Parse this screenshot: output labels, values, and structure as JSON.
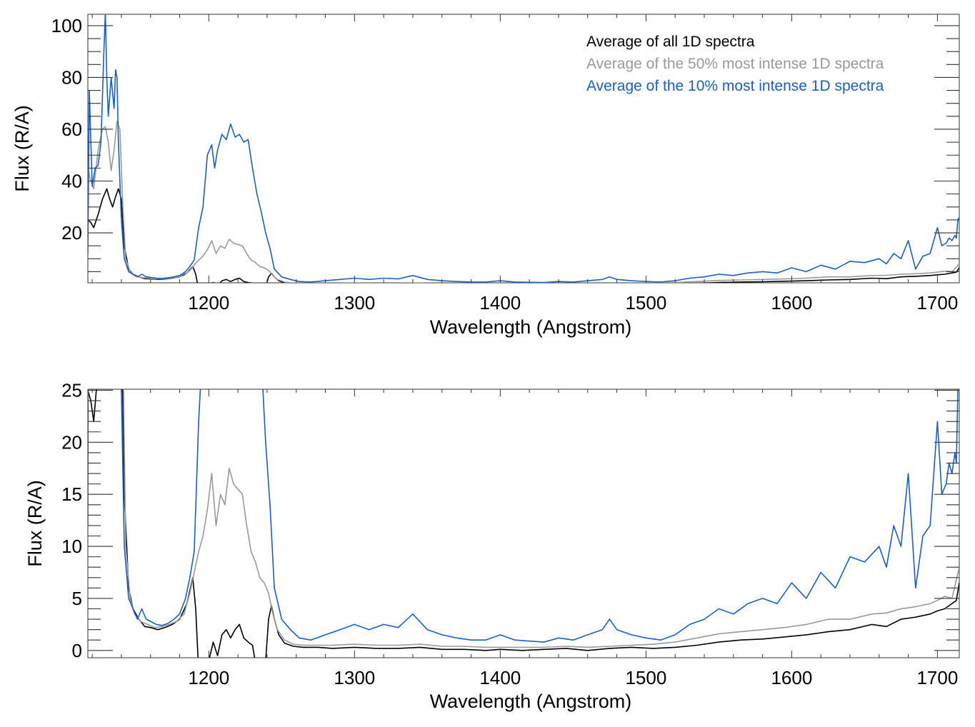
{
  "chart_data": [
    {
      "type": "line",
      "title": "",
      "xlabel": "Wavelength (Angstrom)",
      "ylabel": "Flux (R/A)",
      "xlim": [
        1117,
        1715
      ],
      "ylim": [
        0.7,
        104.4
      ],
      "xticks": [
        1200,
        1300,
        1400,
        1500,
        1600,
        1700
      ],
      "xtick_labels": [
        "1200",
        "1300",
        "1400",
        "1500",
        "1600",
        "1700"
      ],
      "yticks": [
        20,
        40,
        60,
        80,
        100
      ],
      "ytick_labels": [
        "20",
        "40",
        "60",
        "80",
        "100"
      ],
      "legend_placement": "top-right",
      "grid": false
    },
    {
      "type": "line",
      "title": "",
      "xlabel": "Wavelength (Angstrom)",
      "ylabel": "Flux (R/A)",
      "xlim": [
        1117,
        1715
      ],
      "ylim": [
        -0.7,
        25.1
      ],
      "xticks": [
        1200,
        1300,
        1400,
        1500,
        1600,
        1700
      ],
      "xtick_labels": [
        "1200",
        "1300",
        "1400",
        "1500",
        "1600",
        "1700"
      ],
      "yticks": [
        0,
        5,
        10,
        15,
        20,
        25
      ],
      "ytick_labels": [
        "0",
        "5",
        "10",
        "15",
        "20",
        "25"
      ],
      "legend_placement": "none",
      "grid": false
    }
  ],
  "series": [
    {
      "name": "Average of all 1D spectra",
      "color": "#000000",
      "x": [
        1117,
        1119,
        1121,
        1124,
        1127,
        1130,
        1132,
        1134,
        1136,
        1138,
        1140,
        1142,
        1145,
        1148,
        1152,
        1156,
        1160,
        1165,
        1170,
        1175,
        1180,
        1185,
        1189,
        1191,
        1193,
        1195,
        1197,
        1200,
        1203,
        1206,
        1209,
        1212,
        1215,
        1218,
        1221,
        1224,
        1227,
        1230,
        1233,
        1236,
        1239,
        1241,
        1243,
        1245,
        1248,
        1252,
        1258,
        1265,
        1275,
        1285,
        1300,
        1315,
        1330,
        1345,
        1360,
        1375,
        1390,
        1400,
        1415,
        1430,
        1445,
        1460,
        1475,
        1490,
        1505,
        1520,
        1535,
        1550,
        1565,
        1580,
        1595,
        1610,
        1625,
        1640,
        1655,
        1665,
        1675,
        1685,
        1695,
        1700,
        1705,
        1710,
        1713,
        1715
      ],
      "y": [
        25,
        24,
        22,
        27,
        33,
        37,
        33,
        30,
        34,
        37,
        33,
        15,
        6,
        4,
        3,
        2.3,
        2.2,
        2.0,
        2.2,
        2.5,
        3.0,
        4.5,
        7.0,
        4.0,
        -2,
        -5,
        -3,
        -1,
        0.8,
        -0.5,
        1.5,
        2.0,
        1.2,
        2.0,
        2.5,
        1.2,
        0.8,
        0.5,
        -2,
        -4,
        -1,
        3,
        4.3,
        3.0,
        1.5,
        0.7,
        0.4,
        0.3,
        0.3,
        0.2,
        0.3,
        0.2,
        0.2,
        0.3,
        0.1,
        0.1,
        0.0,
        0.1,
        0.0,
        0.1,
        0.2,
        0.0,
        0.2,
        0.3,
        0.2,
        0.3,
        0.5,
        0.8,
        1.0,
        1.1,
        1.3,
        1.5,
        1.8,
        2.0,
        2.5,
        2.3,
        3.0,
        3.2,
        3.5,
        3.8,
        4.0,
        4.5,
        4.8,
        6.5
      ]
    },
    {
      "name": "Average of the 50% most intense 1D spectra",
      "color": "#999999",
      "x": [
        1117,
        1119,
        1121,
        1124,
        1127,
        1129,
        1131,
        1133,
        1135,
        1137,
        1139,
        1141,
        1143,
        1146,
        1149,
        1153,
        1158,
        1163,
        1168,
        1173,
        1178,
        1183,
        1187,
        1190,
        1193,
        1196,
        1199,
        1202,
        1205,
        1208,
        1211,
        1214,
        1217,
        1220,
        1223,
        1226,
        1229,
        1232,
        1235,
        1238,
        1241,
        1244,
        1247,
        1252,
        1258,
        1265,
        1275,
        1285,
        1300,
        1315,
        1330,
        1345,
        1360,
        1375,
        1390,
        1400,
        1415,
        1430,
        1445,
        1460,
        1475,
        1490,
        1505,
        1520,
        1535,
        1550,
        1565,
        1580,
        1595,
        1610,
        1625,
        1640,
        1655,
        1665,
        1675,
        1685,
        1695,
        1700,
        1705,
        1710,
        1713,
        1715
      ],
      "y": [
        45,
        40,
        37,
        52,
        60,
        61,
        55,
        44,
        52,
        63,
        60,
        30,
        10,
        5,
        3.5,
        2.8,
        2.5,
        2.2,
        2.3,
        2.5,
        2.8,
        3.5,
        5.5,
        7.5,
        9.5,
        11.0,
        13.5,
        17.0,
        12.0,
        15.0,
        14.0,
        17.5,
        16.0,
        15.5,
        15.0,
        12.0,
        9.5,
        8.5,
        7.0,
        6.5,
        5.5,
        3.5,
        2.0,
        1.0,
        0.6,
        0.5,
        0.5,
        0.5,
        0.6,
        0.5,
        0.5,
        0.6,
        0.4,
        0.4,
        0.3,
        0.3,
        0.3,
        0.3,
        0.4,
        0.3,
        0.4,
        0.5,
        0.6,
        0.8,
        1.2,
        1.6,
        1.8,
        2.0,
        2.2,
        2.5,
        3.0,
        3.0,
        3.5,
        3.6,
        4.0,
        4.2,
        4.5,
        4.8,
        5.2,
        5.0,
        6.8,
        8.0
      ]
    },
    {
      "name": "Average of the 10% most intense 1D spectra",
      "color": "#1a5fc4",
      "x": [
        1117,
        1118,
        1120,
        1122,
        1124,
        1126,
        1128,
        1129,
        1130,
        1131,
        1133,
        1135,
        1136,
        1137,
        1138,
        1140,
        1142,
        1145,
        1148,
        1151,
        1154,
        1157,
        1160,
        1164,
        1168,
        1172,
        1176,
        1180,
        1184,
        1187,
        1190,
        1193,
        1196,
        1199,
        1202,
        1204,
        1206,
        1209,
        1212,
        1215,
        1218,
        1221,
        1224,
        1227,
        1230,
        1233,
        1236,
        1239,
        1242,
        1245,
        1250,
        1256,
        1262,
        1270,
        1280,
        1290,
        1300,
        1310,
        1320,
        1330,
        1340,
        1350,
        1360,
        1370,
        1380,
        1390,
        1400,
        1410,
        1420,
        1430,
        1440,
        1450,
        1460,
        1470,
        1475,
        1480,
        1490,
        1500,
        1510,
        1520,
        1530,
        1540,
        1550,
        1560,
        1570,
        1580,
        1590,
        1600,
        1610,
        1620,
        1630,
        1640,
        1650,
        1660,
        1665,
        1670,
        1675,
        1680,
        1685,
        1690,
        1695,
        1700,
        1703,
        1706,
        1708,
        1710,
        1712,
        1713,
        1714,
        1715
      ],
      "y": [
        12,
        75,
        38,
        45,
        46,
        55,
        90,
        105,
        80,
        65,
        80,
        68,
        83,
        80,
        55,
        25,
        10,
        5,
        4,
        3,
        4,
        3,
        2.8,
        2.5,
        2.4,
        2.6,
        3.0,
        3.5,
        5.0,
        7.0,
        9.5,
        22,
        30,
        50,
        54,
        45,
        52,
        58,
        56,
        62,
        57,
        58,
        55,
        56,
        45,
        35,
        28,
        20,
        14,
        6,
        3.0,
        2.0,
        1.2,
        1.0,
        1.5,
        2.0,
        2.5,
        2.0,
        2.5,
        2.2,
        3.5,
        2.0,
        1.5,
        1.2,
        1.0,
        1.0,
        1.5,
        1.0,
        0.9,
        0.8,
        1.2,
        1.0,
        1.5,
        2.0,
        3.0,
        2.0,
        1.5,
        1.2,
        1.0,
        1.5,
        2.5,
        3.0,
        4.0,
        3.5,
        4.5,
        5.0,
        4.5,
        6.5,
        5.0,
        7.5,
        6.0,
        9.0,
        8.5,
        10.0,
        8.0,
        12.0,
        10.0,
        17.0,
        6.0,
        11.0,
        12.0,
        22.0,
        15.0,
        16.0,
        18.0,
        17.0,
        19.0,
        18.0,
        25.0,
        26.0
      ]
    }
  ],
  "legend": {
    "entries": [
      "Average of all 1D spectra",
      "Average of the 50% most intense 1D spectra",
      "Average of the 10% most intense 1D spectra"
    ]
  }
}
